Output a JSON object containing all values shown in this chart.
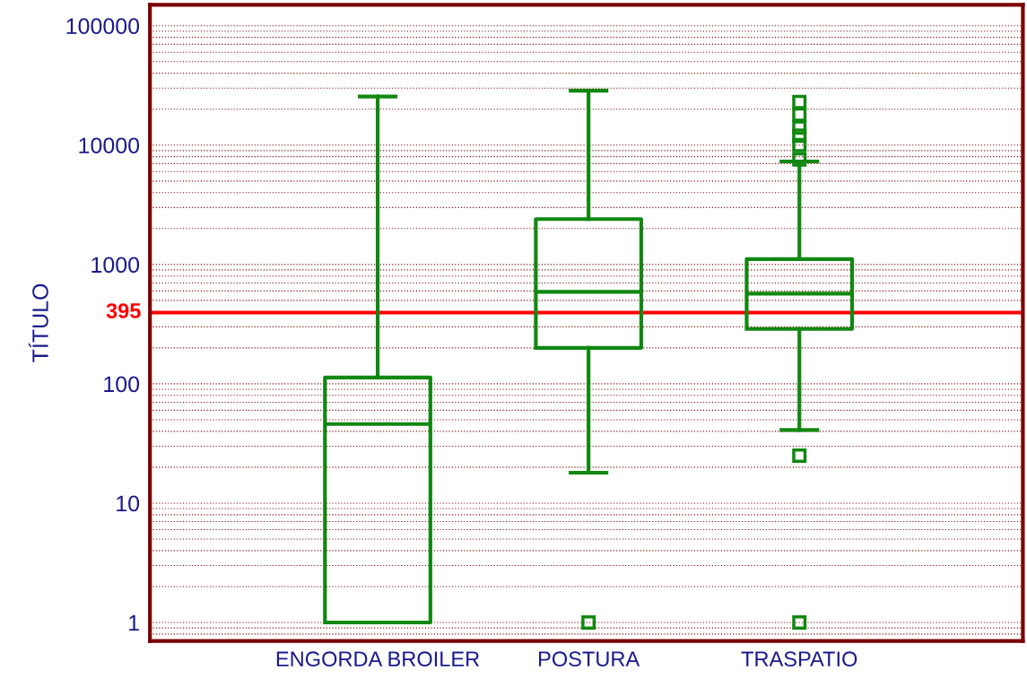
{
  "chart_data": {
    "type": "box",
    "ylabel": "TÍTULO",
    "log": true,
    "grid": "y",
    "categories": [
      "ENGORDA BROILER",
      "POSTURA",
      "TRASPATIO"
    ],
    "color": "#118811",
    "boxes": [
      {
        "low": 1,
        "q1": 1,
        "median": 46,
        "q3": 113,
        "high": 25500
      },
      {
        "low": 18,
        "q1": 200,
        "median": 590,
        "q3": 2400,
        "high": 28600,
        "outliers": [
          1
        ]
      },
      {
        "low": 41,
        "q1": 288,
        "median": 570,
        "q3": 1110,
        "high": 7300,
        "outliers": [
          1,
          25,
          7600,
          10000,
          12000,
          14000,
          18000,
          23000
        ]
      }
    ],
    "ylim": [
      0.7,
      150000
    ],
    "yticks": [
      1,
      10,
      100,
      1000,
      10000,
      100000
    ],
    "ref_lines": [
      {
        "axis": "y",
        "value": 395,
        "label": "395",
        "color": "#ff0000"
      }
    ]
  }
}
